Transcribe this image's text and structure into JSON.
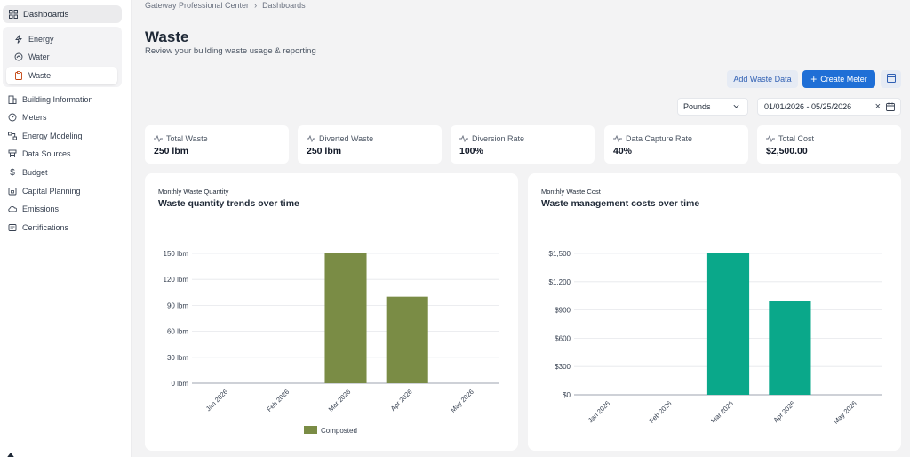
{
  "sidebar": {
    "top_label": "Dashboards",
    "sub_items": [
      {
        "label": "Energy",
        "icon": "bolt-icon"
      },
      {
        "label": "Water",
        "icon": "water-drop-icon"
      },
      {
        "label": "Waste",
        "icon": "clipboard-icon"
      }
    ],
    "nav_items": [
      {
        "label": "Building Information",
        "icon": "building-icon"
      },
      {
        "label": "Meters",
        "icon": "meter-icon"
      },
      {
        "label": "Energy Modeling",
        "icon": "model-icon"
      },
      {
        "label": "Data Sources",
        "icon": "database-icon"
      },
      {
        "label": "Budget",
        "icon": "dollar-icon"
      },
      {
        "label": "Capital Planning",
        "icon": "calendar-icon"
      },
      {
        "label": "Emissions",
        "icon": "cloud-icon"
      },
      {
        "label": "Certifications",
        "icon": "certificate-icon"
      }
    ]
  },
  "breadcrumb": [
    "Gateway Professional Center",
    "Dashboards"
  ],
  "page": {
    "title": "Waste",
    "subtitle": "Review your building waste usage & reporting"
  },
  "actions": {
    "add_label": "Add Waste Data",
    "create_label": "Create Meter"
  },
  "filters": {
    "unit": "Pounds",
    "date_range": "01/01/2026 - 05/25/2026"
  },
  "kpis": [
    {
      "label": "Total Waste",
      "value": "250 lbm"
    },
    {
      "label": "Diverted Waste",
      "value": "250 lbm"
    },
    {
      "label": "Diversion Rate",
      "value": "100%"
    },
    {
      "label": "Data Capture Rate",
      "value": "40%"
    },
    {
      "label": "Total Cost",
      "value": "$2,500.00"
    }
  ],
  "colors": {
    "accent": "#1f6fd6",
    "composted": "#7a8c45",
    "cost": "#0aa88a"
  },
  "chart_data": [
    {
      "type": "bar",
      "eyebrow": "Monthly Waste Quantity",
      "title": "Waste quantity trends over time",
      "categories": [
        "Jan 2026",
        "Feb 2026",
        "Mar 2026",
        "Apr 2026",
        "May 2026"
      ],
      "series": [
        {
          "name": "Composted",
          "values": [
            0,
            0,
            150,
            100,
            0
          ]
        }
      ],
      "yticks": [
        "0 lbm",
        "30 lbm",
        "60 lbm",
        "90 lbm",
        "120 lbm",
        "150 lbm"
      ],
      "ylim": [
        0,
        150
      ],
      "grid": true,
      "legend": "bottom"
    },
    {
      "type": "bar",
      "eyebrow": "Monthly Waste Cost",
      "title": "Waste management costs over time",
      "categories": [
        "Jan 2026",
        "Feb 2026",
        "Mar 2026",
        "Apr 2026",
        "May 2026"
      ],
      "series": [
        {
          "values": [
            0,
            0,
            1500,
            1000,
            0
          ]
        }
      ],
      "yticks": [
        "$0",
        "$300",
        "$600",
        "$900",
        "$1,200",
        "$1,500"
      ],
      "ylim": [
        0,
        1500
      ],
      "grid": true
    }
  ]
}
